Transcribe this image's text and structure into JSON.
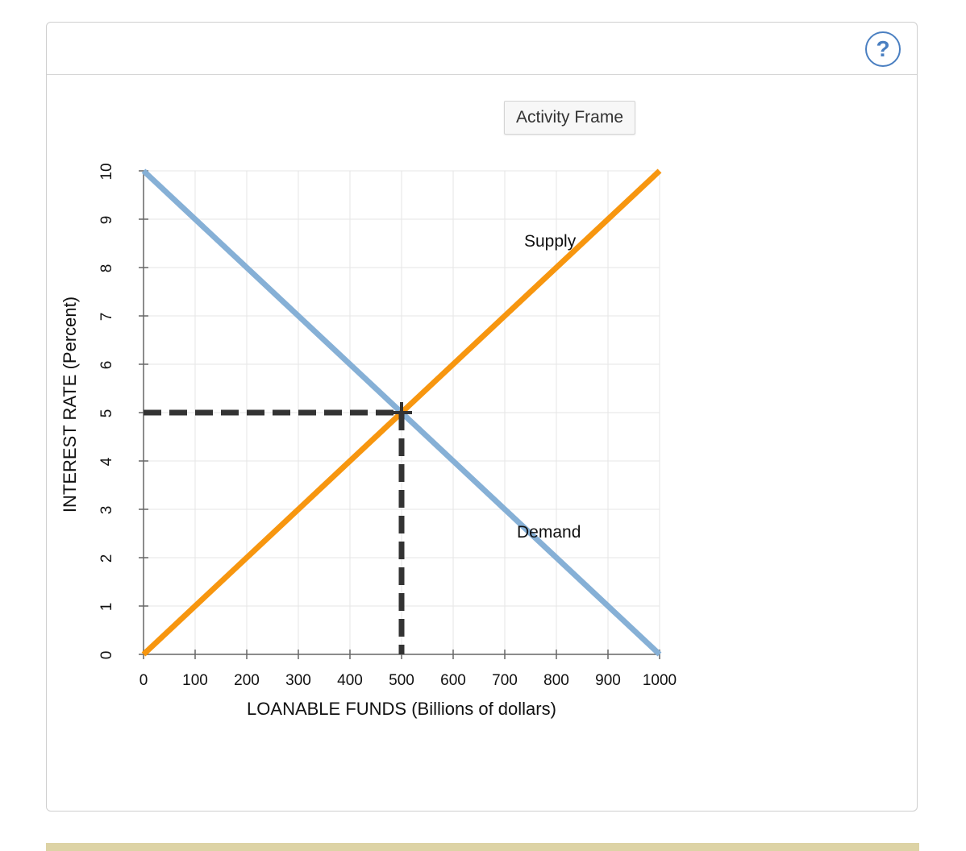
{
  "panel": {
    "help_icon": "question-circle-icon",
    "help_label": "?",
    "activity_frame_label": "Activity Frame"
  },
  "chart_data": {
    "type": "line",
    "xlabel": "LOANABLE FUNDS (Billions of dollars)",
    "ylabel": "INTEREST RATE (Percent)",
    "xlim": [
      0,
      1000
    ],
    "ylim": [
      0,
      10
    ],
    "x_ticks": [
      0,
      100,
      200,
      300,
      400,
      500,
      600,
      700,
      800,
      900,
      1000
    ],
    "y_ticks": [
      0,
      1,
      2,
      3,
      4,
      5,
      6,
      7,
      8,
      9,
      10
    ],
    "grid": true,
    "series": [
      {
        "name": "Supply",
        "color": "#f7960f",
        "points": [
          [
            0,
            0
          ],
          [
            1000,
            10
          ]
        ]
      },
      {
        "name": "Demand",
        "color": "#86b0d6",
        "points": [
          [
            0,
            10
          ],
          [
            1000,
            0
          ]
        ]
      }
    ],
    "equilibrium": {
      "x": 500,
      "y": 5,
      "line_color": "#333333"
    }
  }
}
